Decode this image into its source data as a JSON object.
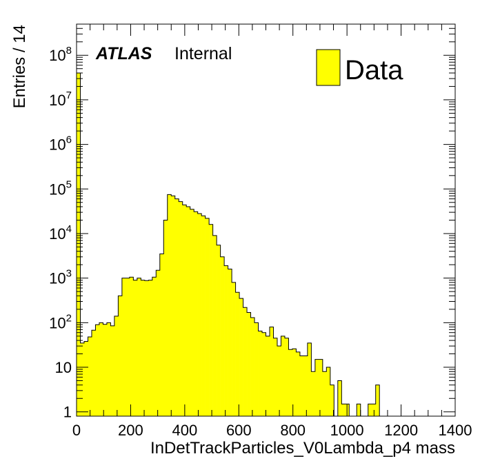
{
  "chart_data": {
    "type": "bar",
    "xlabel": "InDetTrackParticles_V0Lambda_p4 mass",
    "ylabel": "Entries / 14",
    "xlim": [
      0,
      1400
    ],
    "ylim": [
      0.8,
      500000000
    ],
    "log_y": true,
    "bin_width": 14,
    "x_ticks": [
      "0",
      "200",
      "400",
      "600",
      "800",
      "1000",
      "1200",
      "1400"
    ],
    "y_ticks": [
      {
        "value": 1,
        "base": "1",
        "exp": ""
      },
      {
        "value": 10,
        "base": "10",
        "exp": ""
      },
      {
        "value": 100,
        "base": "10",
        "exp": "2"
      },
      {
        "value": 1000,
        "base": "10",
        "exp": "3"
      },
      {
        "value": 10000,
        "base": "10",
        "exp": "4"
      },
      {
        "value": 100000,
        "base": "10",
        "exp": "5"
      },
      {
        "value": 1000000,
        "base": "10",
        "exp": "6"
      },
      {
        "value": 10000000,
        "base": "10",
        "exp": "7"
      },
      {
        "value": 100000000,
        "base": "10",
        "exp": "8"
      }
    ],
    "fill_color": "#ffff00",
    "line_color": "#000000",
    "grid": false,
    "legend_position": "top-right",
    "series": [
      {
        "name": "Data",
        "bin_edges_start": 0,
        "values": [
          40000000,
          35,
          38,
          48,
          68,
          90,
          100,
          92,
          100,
          85,
          140,
          400,
          1000,
          1000,
          1050,
          900,
          1000,
          900,
          880,
          900,
          1050,
          1500,
          3500,
          20000,
          75000,
          70000,
          60000,
          52000,
          44000,
          40000,
          35000,
          31000,
          28000,
          25000,
          22000,
          16000,
          9000,
          5500,
          3000,
          1900,
          1600,
          800,
          480,
          350,
          220,
          170,
          130,
          100,
          65,
          60,
          50,
          80,
          45,
          30,
          50,
          45,
          25,
          26,
          22,
          18,
          18,
          35,
          8,
          15,
          15,
          8,
          10,
          4,
          0,
          5,
          1.5,
          1.5,
          0,
          0,
          1.5,
          0,
          0,
          1.5,
          1.5,
          4
        ]
      }
    ],
    "annotations": {
      "experiment": "ATLAS",
      "status": "Internal"
    }
  }
}
